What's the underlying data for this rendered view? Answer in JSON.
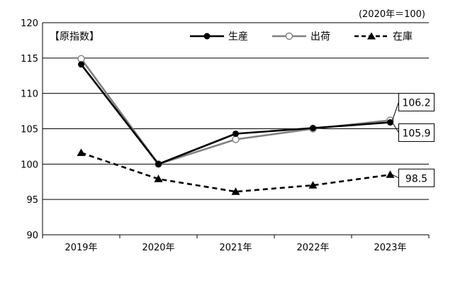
{
  "chart_data": {
    "type": "line",
    "unit_note": "(2020年＝100)",
    "panel_label": "【原指数】",
    "categories": [
      "2019年",
      "2020年",
      "2021年",
      "2022年",
      "2023年"
    ],
    "ylim": [
      90,
      120
    ],
    "yticks": [
      90,
      95,
      100,
      105,
      110,
      115,
      120
    ],
    "grid": "horizontal",
    "legend_position": "top-right",
    "series": [
      {
        "name": "生産",
        "values": [
          114.1,
          100.0,
          104.3,
          105.1,
          105.9
        ],
        "color": "#000000",
        "marker": "filled-circle",
        "style": "solid"
      },
      {
        "name": "出荷",
        "values": [
          114.9,
          100.0,
          103.5,
          105.0,
          106.2
        ],
        "color": "#808080",
        "marker": "open-circle",
        "style": "solid"
      },
      {
        "name": "在庫",
        "values": [
          101.6,
          97.9,
          96.1,
          97.0,
          98.5
        ],
        "color": "#000000",
        "marker": "filled-triangle",
        "style": "dashed"
      }
    ],
    "data_labels": [
      {
        "series": "出荷",
        "index": 4,
        "text": "106.2"
      },
      {
        "series": "生産",
        "index": 4,
        "text": "105.9"
      },
      {
        "series": "在庫",
        "index": 4,
        "text": "98.5"
      }
    ]
  }
}
